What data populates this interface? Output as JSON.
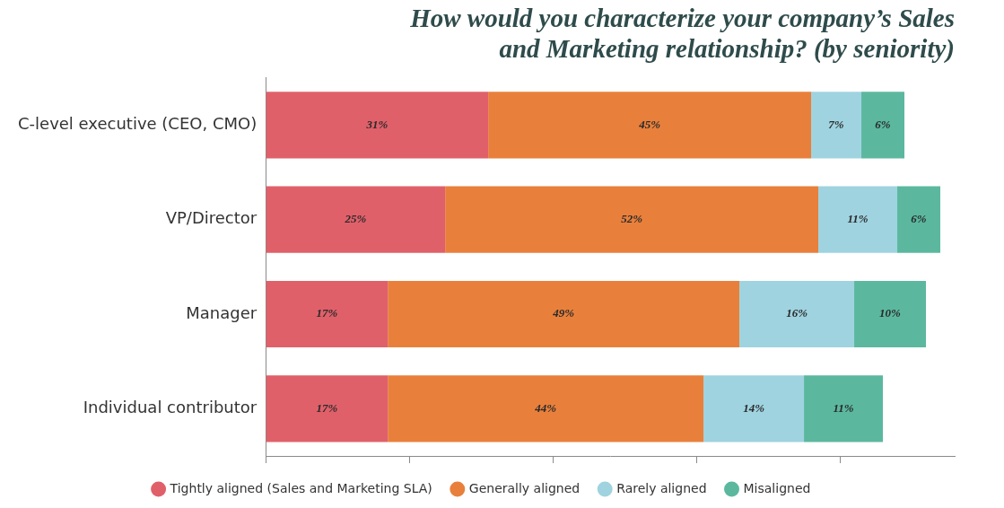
{
  "chart_data": {
    "type": "bar",
    "orientation": "horizontal",
    "stacked": true,
    "title": [
      "How would you characterize your company’s Sales",
      "and Marketing relationship? (by seniority)"
    ],
    "categories": [
      "C-level executive (CEO, CMO)",
      "VP/Director",
      "Manager",
      "Individual contributor"
    ],
    "series": [
      {
        "name": "Tightly aligned (Sales and Marketing SLA)",
        "color": "#e0606a",
        "values": [
          31,
          25,
          17,
          17
        ],
        "value_labels": [
          "31%",
          "25%",
          "17%",
          "17%"
        ]
      },
      {
        "name": "Generally aligned",
        "color": "#e8803c",
        "values": [
          45,
          52,
          49,
          44
        ],
        "value_labels": [
          "45%",
          "52%",
          "49%",
          "44%"
        ]
      },
      {
        "name": "Rarely aligned",
        "color": "#9fd3e0",
        "values": [
          7,
          11,
          16,
          14
        ],
        "value_labels": [
          "7%",
          "11%",
          "16%",
          "14%"
        ]
      },
      {
        "name": "Misaligned",
        "color": "#5bb89f",
        "values": [
          6,
          6,
          10,
          11
        ],
        "value_labels": [
          "6%",
          "6%",
          "10%",
          "11%"
        ]
      }
    ],
    "xlim": [
      0,
      96
    ],
    "xticks": [
      0,
      20,
      40,
      60,
      80
    ],
    "grid": false,
    "legend": "bottom",
    "data_labels": true,
    "tick_labels": "y"
  }
}
